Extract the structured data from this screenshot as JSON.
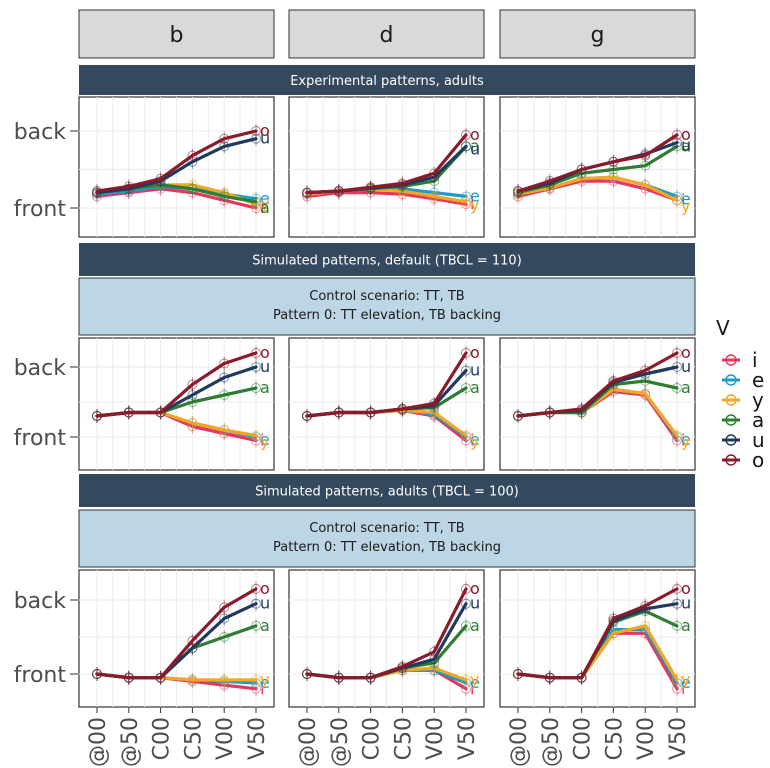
{
  "chart_data": {
    "type": "line",
    "facet_columns": [
      "b",
      "d",
      "g"
    ],
    "x_categories": [
      "@00",
      "@50",
      "C00",
      "C50",
      "V00",
      "V50"
    ],
    "y_ticks": [
      "back",
      "front"
    ],
    "ylim": [
      -0.25,
      1.2
    ],
    "legend": {
      "title": "V",
      "placement": "right"
    },
    "series_colors": {
      "i": "#e8365d",
      "e": "#1a9bc9",
      "y": "#f5a623",
      "a": "#2e7d32",
      "u": "#1f3a5f",
      "o": "#8b1a2b"
    },
    "series_order": [
      "i",
      "e",
      "y",
      "a",
      "u",
      "o"
    ],
    "rows": [
      {
        "headers": [
          "Experimental patterns, adults"
        ],
        "panels": [
          {
            "column": "b",
            "series": [
              {
                "name": "i",
                "values": [
                  0.15,
                  0.2,
                  0.25,
                  0.2,
                  0.1,
                  0.0
                ]
              },
              {
                "name": "e",
                "values": [
                  0.18,
                  0.22,
                  0.28,
                  0.25,
                  0.18,
                  0.12
                ]
              },
              {
                "name": "y",
                "values": [
                  0.2,
                  0.25,
                  0.3,
                  0.3,
                  0.2,
                  0.05
                ]
              },
              {
                "name": "a",
                "values": [
                  0.2,
                  0.25,
                  0.3,
                  0.25,
                  0.15,
                  0.08
                ]
              },
              {
                "name": "u",
                "values": [
                  0.2,
                  0.25,
                  0.35,
                  0.6,
                  0.8,
                  0.9
                ]
              },
              {
                "name": "o",
                "values": [
                  0.22,
                  0.28,
                  0.38,
                  0.68,
                  0.9,
                  1.0
                ]
              }
            ]
          },
          {
            "column": "d",
            "series": [
              {
                "name": "i",
                "values": [
                  0.15,
                  0.2,
                  0.2,
                  0.18,
                  0.12,
                  0.05
                ]
              },
              {
                "name": "e",
                "values": [
                  0.18,
                  0.22,
                  0.25,
                  0.25,
                  0.2,
                  0.15
                ]
              },
              {
                "name": "y",
                "values": [
                  0.18,
                  0.22,
                  0.25,
                  0.22,
                  0.15,
                  0.08
                ]
              },
              {
                "name": "a",
                "values": [
                  0.2,
                  0.22,
                  0.25,
                  0.28,
                  0.35,
                  0.8
                ]
              },
              {
                "name": "u",
                "values": [
                  0.2,
                  0.22,
                  0.26,
                  0.3,
                  0.4,
                  0.8
                ]
              },
              {
                "name": "o",
                "values": [
                  0.2,
                  0.22,
                  0.27,
                  0.32,
                  0.45,
                  0.95
                ]
              }
            ]
          },
          {
            "column": "g",
            "series": [
              {
                "name": "i",
                "values": [
                  0.15,
                  0.25,
                  0.35,
                  0.35,
                  0.25,
                  0.1
                ]
              },
              {
                "name": "e",
                "values": [
                  0.18,
                  0.26,
                  0.38,
                  0.4,
                  0.3,
                  0.15
                ]
              },
              {
                "name": "y",
                "values": [
                  0.18,
                  0.26,
                  0.38,
                  0.4,
                  0.3,
                  0.1
                ]
              },
              {
                "name": "a",
                "values": [
                  0.2,
                  0.3,
                  0.45,
                  0.5,
                  0.55,
                  0.8
                ]
              },
              {
                "name": "u",
                "values": [
                  0.22,
                  0.32,
                  0.5,
                  0.6,
                  0.7,
                  0.85
                ]
              },
              {
                "name": "o",
                "values": [
                  0.22,
                  0.35,
                  0.5,
                  0.6,
                  0.68,
                  0.95
                ]
              }
            ]
          }
        ]
      },
      {
        "headers": [
          "Simulated patterns, default (TBCL = 110)",
          "Control scenario: TT, TB",
          "Pattern 0: TT elevation, TB backing"
        ],
        "panels": [
          {
            "column": "b",
            "series": [
              {
                "name": "i",
                "values": [
                  0.3,
                  0.35,
                  0.35,
                  0.15,
                  0.05,
                  -0.05
                ]
              },
              {
                "name": "e",
                "values": [
                  0.3,
                  0.35,
                  0.35,
                  0.2,
                  0.1,
                  0.0
                ]
              },
              {
                "name": "y",
                "values": [
                  0.3,
                  0.35,
                  0.35,
                  0.2,
                  0.1,
                  0.02
                ]
              },
              {
                "name": "a",
                "values": [
                  0.3,
                  0.35,
                  0.35,
                  0.5,
                  0.6,
                  0.7
                ]
              },
              {
                "name": "u",
                "values": [
                  0.3,
                  0.35,
                  0.35,
                  0.6,
                  0.85,
                  1.0
                ]
              },
              {
                "name": "o",
                "values": [
                  0.3,
                  0.35,
                  0.35,
                  0.75,
                  1.05,
                  1.2
                ]
              }
            ]
          },
          {
            "column": "d",
            "series": [
              {
                "name": "i",
                "values": [
                  0.3,
                  0.35,
                  0.35,
                  0.38,
                  0.3,
                  -0.05
                ]
              },
              {
                "name": "e",
                "values": [
                  0.3,
                  0.35,
                  0.35,
                  0.38,
                  0.32,
                  0.0
                ]
              },
              {
                "name": "y",
                "values": [
                  0.3,
                  0.35,
                  0.35,
                  0.38,
                  0.35,
                  0.02
                ]
              },
              {
                "name": "a",
                "values": [
                  0.3,
                  0.35,
                  0.35,
                  0.4,
                  0.42,
                  0.7
                ]
              },
              {
                "name": "u",
                "values": [
                  0.3,
                  0.35,
                  0.35,
                  0.4,
                  0.45,
                  0.95
                ]
              },
              {
                "name": "o",
                "values": [
                  0.3,
                  0.35,
                  0.35,
                  0.4,
                  0.48,
                  1.2
                ]
              }
            ]
          },
          {
            "column": "g",
            "series": [
              {
                "name": "i",
                "values": [
                  0.3,
                  0.35,
                  0.35,
                  0.65,
                  0.6,
                  -0.05
                ]
              },
              {
                "name": "e",
                "values": [
                  0.3,
                  0.35,
                  0.35,
                  0.68,
                  0.62,
                  0.0
                ]
              },
              {
                "name": "y",
                "values": [
                  0.3,
                  0.35,
                  0.35,
                  0.68,
                  0.62,
                  0.02
                ]
              },
              {
                "name": "a",
                "values": [
                  0.3,
                  0.35,
                  0.35,
                  0.75,
                  0.8,
                  0.7
                ]
              },
              {
                "name": "u",
                "values": [
                  0.3,
                  0.35,
                  0.38,
                  0.78,
                  0.9,
                  1.0
                ]
              },
              {
                "name": "o",
                "values": [
                  0.3,
                  0.35,
                  0.4,
                  0.8,
                  0.95,
                  1.2
                ]
              }
            ]
          }
        ]
      },
      {
        "headers": [
          "Simulated patterns, adults (TBCL = 100)",
          "Control scenario: TT, TB",
          "Pattern 0: TT elevation, TB backing"
        ],
        "panels": [
          {
            "column": "b",
            "series": [
              {
                "name": "i",
                "values": [
                  0.0,
                  -0.05,
                  -0.05,
                  -0.1,
                  -0.15,
                  -0.2
                ]
              },
              {
                "name": "e",
                "values": [
                  0.0,
                  -0.05,
                  -0.05,
                  -0.08,
                  -0.1,
                  -0.12
                ]
              },
              {
                "name": "y",
                "values": [
                  0.0,
                  -0.05,
                  -0.05,
                  -0.08,
                  -0.08,
                  -0.08
                ]
              },
              {
                "name": "a",
                "values": [
                  0.0,
                  -0.05,
                  -0.05,
                  0.35,
                  0.5,
                  0.65
                ]
              },
              {
                "name": "u",
                "values": [
                  0.0,
                  -0.05,
                  -0.05,
                  0.35,
                  0.75,
                  0.95
                ]
              },
              {
                "name": "o",
                "values": [
                  0.0,
                  -0.05,
                  -0.05,
                  0.45,
                  0.9,
                  1.15
                ]
              }
            ]
          },
          {
            "column": "d",
            "series": [
              {
                "name": "i",
                "values": [
                  0.0,
                  -0.05,
                  -0.05,
                  0.05,
                  0.05,
                  -0.2
                ]
              },
              {
                "name": "e",
                "values": [
                  0.0,
                  -0.05,
                  -0.05,
                  0.05,
                  0.05,
                  -0.12
                ]
              },
              {
                "name": "y",
                "values": [
                  0.0,
                  -0.05,
                  -0.05,
                  0.05,
                  0.08,
                  -0.08
                ]
              },
              {
                "name": "a",
                "values": [
                  0.0,
                  -0.05,
                  -0.05,
                  0.08,
                  0.15,
                  0.65
                ]
              },
              {
                "name": "u",
                "values": [
                  0.0,
                  -0.05,
                  -0.05,
                  0.08,
                  0.2,
                  0.95
                ]
              },
              {
                "name": "o",
                "values": [
                  0.0,
                  -0.05,
                  -0.05,
                  0.1,
                  0.3,
                  1.15
                ]
              }
            ]
          },
          {
            "column": "g",
            "series": [
              {
                "name": "i",
                "values": [
                  0.0,
                  -0.05,
                  -0.05,
                  0.55,
                  0.55,
                  -0.2
                ]
              },
              {
                "name": "e",
                "values": [
                  0.0,
                  -0.05,
                  -0.05,
                  0.6,
                  0.6,
                  -0.12
                ]
              },
              {
                "name": "y",
                "values": [
                  0.0,
                  -0.05,
                  -0.05,
                  0.55,
                  0.65,
                  -0.08
                ]
              },
              {
                "name": "a",
                "values": [
                  0.0,
                  -0.05,
                  -0.05,
                  0.7,
                  0.85,
                  0.65
                ]
              },
              {
                "name": "u",
                "values": [
                  0.0,
                  -0.05,
                  -0.05,
                  0.72,
                  0.88,
                  0.95
                ]
              },
              {
                "name": "o",
                "values": [
                  0.0,
                  -0.05,
                  -0.05,
                  0.75,
                  0.92,
                  1.15
                ]
              }
            ]
          }
        ]
      }
    ]
  }
}
